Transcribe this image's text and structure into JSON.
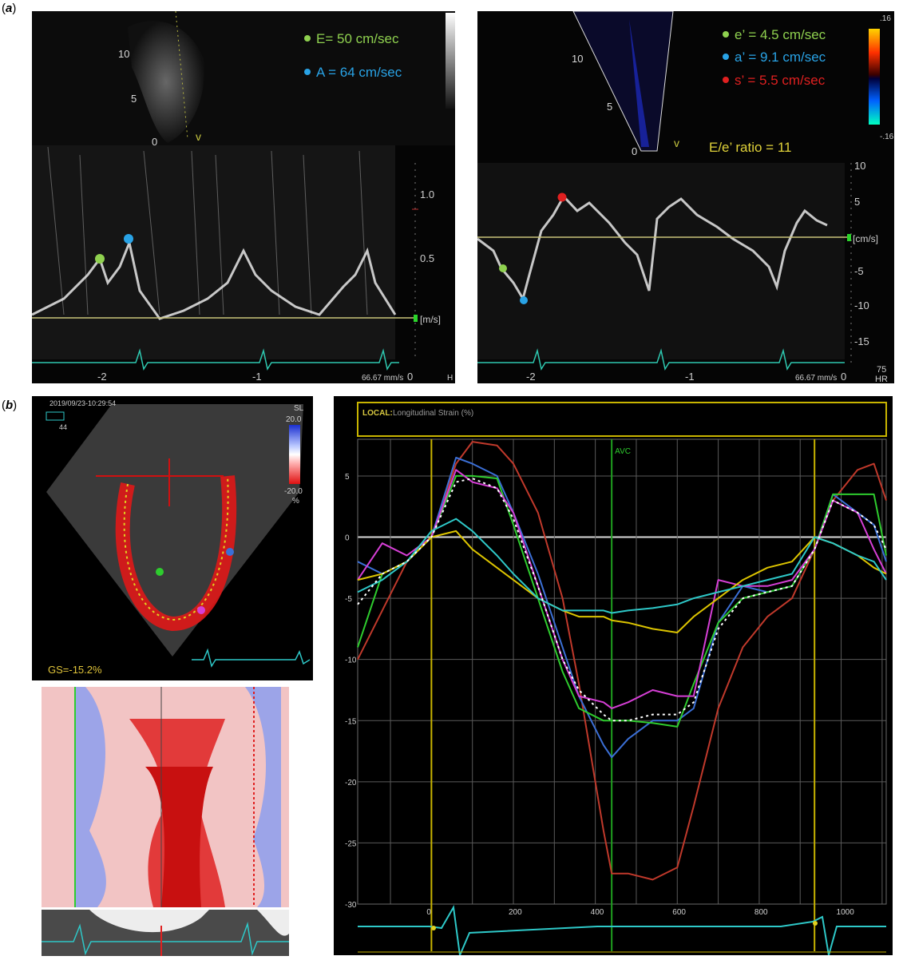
{
  "panel_a": {
    "label": "a",
    "mitral_inflow": {
      "depth_ticks": [
        "10",
        "5",
        "0"
      ],
      "marker": "v",
      "legend": [
        {
          "text": "E= 50 cm/sec",
          "color": "#8fd14f"
        },
        {
          "text": "A = 64 cm/sec",
          "color": "#29a3e6"
        }
      ],
      "velocity_ticks": [
        "1.0",
        "0.5"
      ],
      "unit": "[m/s]",
      "time_ticks": [
        "-2",
        "-1",
        "0"
      ],
      "speed": "66.67 mm/s",
      "hr_label": "H"
    },
    "tissue_doppler": {
      "depth_ticks": [
        "10",
        "5",
        "0"
      ],
      "marker": "v",
      "color_scale_top": ".16",
      "color_scale_bottom": "-.16",
      "legend": [
        {
          "text": "e’ = 4.5 cm/sec",
          "color": "#8fd14f"
        },
        {
          "text": "a’ = 9.1 cm/sec",
          "color": "#29a3e6"
        },
        {
          "text": "s’ = 5.5 cm/sec",
          "color": "#e02020"
        }
      ],
      "ratio": "E/e’ ratio = 11",
      "velocity_ticks": [
        "10",
        "5",
        "-5",
        "-10",
        "-15"
      ],
      "unit": "[cm/s]",
      "time_ticks": [
        "-2",
        "-1",
        "0"
      ],
      "speed": "66.67 mm/s",
      "hr_value": "75",
      "hr_label": "HR"
    }
  },
  "panel_b": {
    "label": "b",
    "timestamp": "2019/09/23-10:29:54",
    "frame_info": "44",
    "scale_name": "SL",
    "scale_top": "20.0",
    "scale_bottom": "-20.0",
    "scale_unit": "%",
    "gs_label": "GS=-15.2%",
    "chart_header_prefix": "LOCAL:",
    "chart_header": "Longitudinal Strain (%)",
    "avc_label": "AVC"
  },
  "chart_data": {
    "type": "line",
    "title": "LOCAL: Longitudinal Strain (%)",
    "xlabel": "",
    "ylabel": "",
    "xlim": [
      -180,
      1110
    ],
    "ylim": [
      -30,
      8
    ],
    "x_ticks": [
      "0",
      "200",
      "400",
      "600",
      "800",
      "1000"
    ],
    "y_ticks": [
      "5",
      "0",
      "-5",
      "-10",
      "-15",
      "-20",
      "-25",
      "-30"
    ],
    "grid": true,
    "vertical_markers": [
      {
        "x": 0,
        "color": "#c8b400"
      },
      {
        "x": 440,
        "color": "#1fa01f",
        "label": "AVC"
      },
      {
        "x": 935,
        "color": "#c8b400"
      }
    ],
    "x": [
      -180,
      -120,
      -60,
      0,
      60,
      100,
      160,
      200,
      260,
      320,
      360,
      420,
      440,
      480,
      540,
      600,
      640,
      700,
      760,
      820,
      880,
      935,
      980,
      1040,
      1080,
      1110
    ],
    "series": [
      {
        "color": "#c0392b",
        "values": [
          -10,
          -6,
          -2,
          0,
          6,
          7.8,
          7.5,
          6,
          2,
          -5,
          -12,
          -24,
          -27.5,
          -27.5,
          -28,
          -27,
          -22,
          -14,
          -9,
          -6.5,
          -5,
          -1,
          3,
          5.5,
          6,
          3
        ]
      },
      {
        "color": "#3b6fd6",
        "values": [
          -2,
          -3,
          -2,
          0,
          6.5,
          6,
          5,
          2,
          -3,
          -9,
          -13,
          -17,
          -18,
          -16.5,
          -15,
          -15,
          -14,
          -7,
          -4,
          -4.5,
          -4,
          -1,
          3.5,
          2,
          1,
          -2
        ]
      },
      {
        "color": "#2ecc2e",
        "values": [
          -9,
          -3,
          -2,
          0,
          5,
          5,
          4.8,
          1,
          -5,
          -11,
          -14,
          -15,
          -15,
          -15,
          -15.2,
          -15.5,
          -12,
          -7,
          -5,
          -4.5,
          -4,
          -1,
          3.5,
          3.5,
          3.5,
          -1.5
        ]
      },
      {
        "color": "#d63fd6",
        "values": [
          -3.5,
          -0.5,
          -1.5,
          0,
          5.5,
          4.5,
          4,
          2,
          -4,
          -10,
          -13,
          -13.5,
          -14,
          -13.5,
          -12.5,
          -13,
          -13,
          -3.5,
          -4,
          -4,
          -3.5,
          -1,
          3,
          2,
          -1,
          -3
        ]
      },
      {
        "color": "#dcc400",
        "values": [
          -3.5,
          -3,
          -2,
          0,
          0.5,
          -1,
          -2.5,
          -3.5,
          -5,
          -6,
          -6.5,
          -6.5,
          -6.8,
          -7,
          -7.5,
          -7.8,
          -6.5,
          -5,
          -3.5,
          -2.5,
          -2,
          0,
          -0.5,
          -1.5,
          -2.5,
          -3
        ]
      },
      {
        "color": "#2ec8c8",
        "values": [
          -4.5,
          -3.5,
          -2,
          0.5,
          1.5,
          0.5,
          -1.5,
          -3,
          -5,
          -6,
          -6,
          -6,
          -6.2,
          -6,
          -5.8,
          -5.5,
          -5,
          -4.5,
          -4,
          -3.5,
          -3,
          0,
          -0.5,
          -1.5,
          -2,
          -3.5
        ]
      },
      {
        "color": "#ffffff",
        "dashed": true,
        "values": [
          -5.5,
          -3,
          -2,
          0,
          4.5,
          4.8,
          4,
          1.5,
          -4,
          -10,
          -12.5,
          -14.5,
          -15,
          -15,
          -14.5,
          -14.5,
          -13.5,
          -7.5,
          -5,
          -4.5,
          -4,
          -1,
          3,
          2,
          1,
          -1
        ]
      }
    ]
  }
}
